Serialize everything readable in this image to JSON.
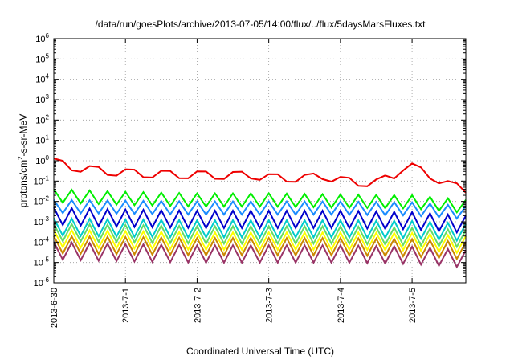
{
  "chart_data": {
    "type": "line",
    "title": "/data/run/goesPlots/archive/2013-07-05/14:00/flux/../flux/5daysMarsFluxes.txt",
    "xlabel": "Coordinated Universal Time (UTC)",
    "ylabel": {
      "base": "protons/cm",
      "sup": "2",
      "rest": "-s-sr-MeV"
    },
    "y_scale": "log",
    "ylim": [
      1e-06,
      1000000.0
    ],
    "xlim": [
      "2013-06-30T00:00",
      "2013-07-05T18:00"
    ],
    "grid": true,
    "legend": "none",
    "x_ticks": [
      {
        "value": "2013-06-30",
        "label": "2013-6-30"
      },
      {
        "value": "2013-07-01",
        "label": "2013-7-1"
      },
      {
        "value": "2013-07-02",
        "label": "2013-7-2"
      },
      {
        "value": "2013-07-03",
        "label": "2013-7-3"
      },
      {
        "value": "2013-07-04",
        "label": "2013-7-4"
      },
      {
        "value": "2013-07-05",
        "label": "2013-7-5"
      }
    ],
    "y_ticks": [
      {
        "exp": "-6"
      },
      {
        "exp": "-5"
      },
      {
        "exp": "-4"
      },
      {
        "exp": "-3"
      },
      {
        "exp": "-2"
      },
      {
        "exp": "-1"
      },
      {
        "exp": "0"
      },
      {
        "exp": "1"
      },
      {
        "exp": "2"
      },
      {
        "exp": "3"
      },
      {
        "exp": "4"
      },
      {
        "exp": "5"
      },
      {
        "exp": "6"
      }
    ],
    "y_tick_base": "10",
    "series": [
      {
        "color": "#ee0000",
        "values": [
          [
            "2013-06-30T00:00",
            1.3
          ],
          [
            "2013-06-30T06:00",
            0.75
          ],
          [
            "2013-06-30T12:00",
            0.55
          ],
          [
            "2013-06-30T18:00",
            0.45
          ],
          [
            "2013-07-01T00:00",
            0.38
          ],
          [
            "2013-07-01T12:00",
            0.32
          ],
          [
            "2013-07-02T00:00",
            0.3
          ],
          [
            "2013-07-02T12:00",
            0.28
          ],
          [
            "2013-07-02T18:00",
            0.3
          ],
          [
            "2013-07-03T00:00",
            0.22
          ],
          [
            "2013-07-03T12:00",
            0.2
          ],
          [
            "2013-07-03T18:00",
            0.28
          ],
          [
            "2013-07-04T00:00",
            0.16
          ],
          [
            "2013-07-04T06:00",
            0.13
          ],
          [
            "2013-07-04T12:00",
            0.12
          ],
          [
            "2013-07-04T18:00",
            0.3
          ],
          [
            "2013-07-04T22:00",
            1.0
          ],
          [
            "2013-07-05T06:00",
            0.3
          ],
          [
            "2013-07-05T12:00",
            0.1
          ],
          [
            "2013-07-05T18:00",
            0.06
          ]
        ]
      },
      {
        "color": "#00ee00",
        "values": [
          [
            "2013-06-30T00:00",
            0.04
          ],
          [
            "2013-07-01T00:00",
            0.03
          ],
          [
            "2013-07-02T00:00",
            0.025
          ],
          [
            "2013-07-03T00:00",
            0.025
          ],
          [
            "2013-07-04T00:00",
            0.022
          ],
          [
            "2013-07-05T00:00",
            0.02
          ],
          [
            "2013-07-05T18:00",
            0.012
          ]
        ]
      },
      {
        "color": "#1a8cff",
        "values": [
          [
            "2013-06-30T00:00",
            0.012
          ],
          [
            "2013-07-01T00:00",
            0.011
          ],
          [
            "2013-07-02T00:00",
            0.01
          ],
          [
            "2013-07-03T00:00",
            0.01
          ],
          [
            "2013-07-04T00:00",
            0.01
          ],
          [
            "2013-07-05T00:00",
            0.009
          ],
          [
            "2013-07-05T18:00",
            0.006
          ]
        ]
      },
      {
        "color": "#0000cc",
        "values": [
          [
            "2013-06-30T00:00",
            0.005
          ],
          [
            "2013-07-01T00:00",
            0.004
          ],
          [
            "2013-07-02T00:00",
            0.0035
          ],
          [
            "2013-07-03T00:00",
            0.0035
          ],
          [
            "2013-07-04T00:00",
            0.0035
          ],
          [
            "2013-07-05T00:00",
            0.003
          ],
          [
            "2013-07-05T18:00",
            0.002
          ]
        ]
      },
      {
        "color": "#00cccc",
        "values": [
          [
            "2013-06-30T00:00",
            0.0015
          ],
          [
            "2013-07-01T00:00",
            0.0013
          ],
          [
            "2013-07-02T00:00",
            0.0012
          ],
          [
            "2013-07-03T00:00",
            0.0012
          ],
          [
            "2013-07-04T00:00",
            0.0012
          ],
          [
            "2013-07-05T00:00",
            0.0011
          ],
          [
            "2013-07-05T18:00",
            0.0008
          ]
        ]
      },
      {
        "color": "#66dd66",
        "values": [
          [
            "2013-06-30T00:00",
            0.0008
          ],
          [
            "2013-07-01T00:00",
            0.0007
          ],
          [
            "2013-07-02T00:00",
            0.0006
          ],
          [
            "2013-07-03T00:00",
            0.0006
          ],
          [
            "2013-07-04T00:00",
            0.0006
          ],
          [
            "2013-07-05T00:00",
            0.0005
          ],
          [
            "2013-07-05T18:00",
            0.0004
          ]
        ]
      },
      {
        "color": "#ffff00",
        "values": [
          [
            "2013-06-30T00:00",
            0.0004
          ],
          [
            "2013-07-01T00:00",
            0.00035
          ],
          [
            "2013-07-02T00:00",
            0.0003
          ],
          [
            "2013-07-03T00:00",
            0.0003
          ],
          [
            "2013-07-04T00:00",
            0.0003
          ],
          [
            "2013-07-05T00:00",
            0.00028
          ],
          [
            "2013-07-05T18:00",
            0.0002
          ]
        ]
      },
      {
        "color": "#cc8800",
        "values": [
          [
            "2013-06-30T00:00",
            0.0002
          ],
          [
            "2013-07-01T00:00",
            0.00018
          ],
          [
            "2013-07-02T00:00",
            0.00016
          ],
          [
            "2013-07-03T00:00",
            0.00016
          ],
          [
            "2013-07-04T00:00",
            0.00016
          ],
          [
            "2013-07-05T00:00",
            0.00014
          ],
          [
            "2013-07-05T18:00",
            0.0001
          ]
        ]
      },
      {
        "color": "#993366",
        "values": [
          [
            "2013-06-30T00:00",
            0.0001
          ],
          [
            "2013-07-01T00:00",
            8e-05
          ],
          [
            "2013-07-02T00:00",
            7e-05
          ],
          [
            "2013-07-03T00:00",
            7e-05
          ],
          [
            "2013-07-04T00:00",
            7e-05
          ],
          [
            "2013-07-05T00:00",
            6e-05
          ],
          [
            "2013-07-05T18:00",
            4e-05
          ]
        ]
      }
    ]
  }
}
